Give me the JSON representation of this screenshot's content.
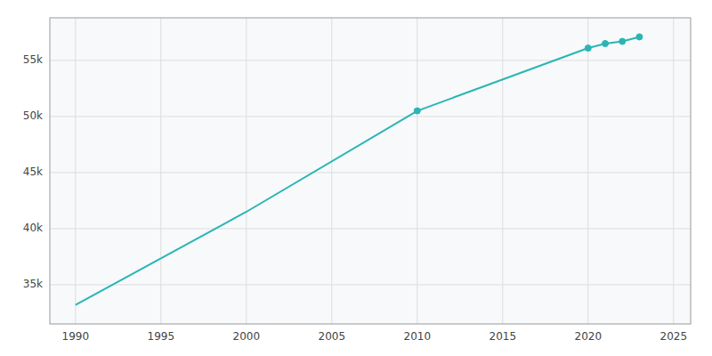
{
  "chart_data": {
    "type": "line",
    "x": [
      1990,
      2000,
      2010,
      2020,
      2021,
      2022,
      2023
    ],
    "series": [
      {
        "values": [
          33200,
          41500,
          50500,
          56100,
          56500,
          56700,
          57100
        ],
        "color": "#2ab5b5",
        "marker": "none",
        "line_style": "solid"
      },
      {
        "values": [
          null,
          null,
          50500,
          56100,
          56500,
          56700,
          57100
        ],
        "color": "#2ab5b5",
        "marker": "circle",
        "line_style": "none"
      }
    ],
    "xlim": [
      1988.5,
      2026
    ],
    "ylim": [
      31500,
      58800
    ],
    "xticks": [
      1990,
      1995,
      2000,
      2005,
      2010,
      2015,
      2020,
      2025
    ],
    "yticks": [
      {
        "value": 35000,
        "label": "35k"
      },
      {
        "value": 40000,
        "label": "40k"
      },
      {
        "value": 45000,
        "label": "45k"
      },
      {
        "value": 50000,
        "label": "50k"
      },
      {
        "value": 55000,
        "label": "55k"
      }
    ],
    "grid": true
  }
}
